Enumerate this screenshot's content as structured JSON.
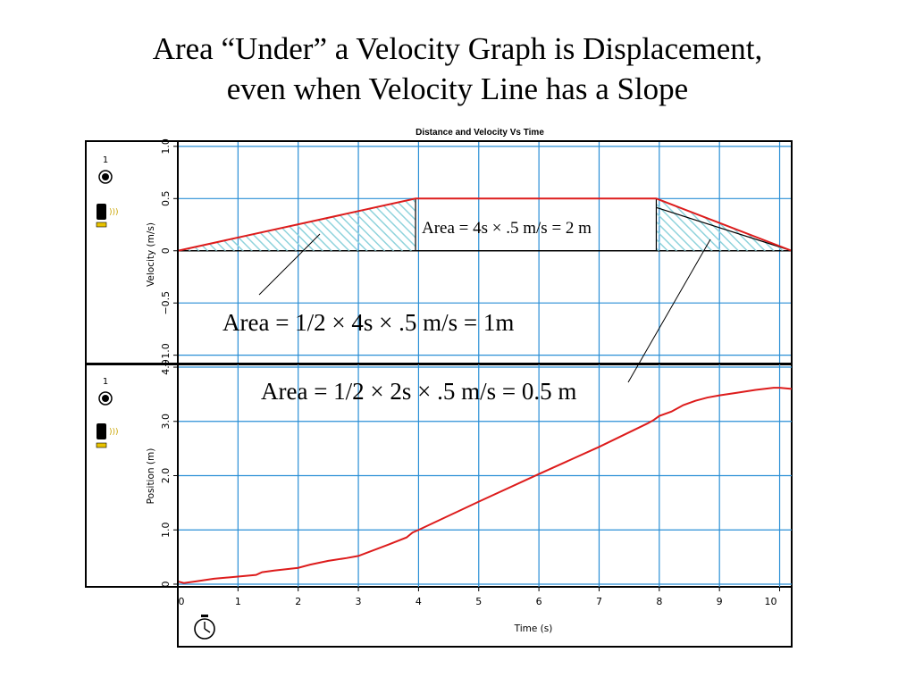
{
  "slide": {
    "title_line1": "Area “Under” a Velocity Graph is Displacement,",
    "title_line2": "even when Velocity Line has a Slope"
  },
  "chart_data": {
    "type": "line",
    "title": "Distance and Velocity Vs Time",
    "xlabel": "Time (s)",
    "xlim": [
      0,
      10.2
    ],
    "x_ticks": [
      0,
      1,
      2,
      3,
      4,
      5,
      6,
      7,
      8,
      9,
      10
    ],
    "colors": {
      "data": "#dd1c1c",
      "grid": "#2a8fd6",
      "hatch": "#8fd3dc"
    },
    "panels": [
      {
        "name": "velocity",
        "ylabel": "Velocity (m/s)",
        "ylim": [
          -1.08,
          1.05
        ],
        "y_ticks": [
          1.0,
          0.5,
          0,
          -0.5,
          -1.0
        ],
        "y_tick_labels": [
          "1.0",
          "0.5",
          "0",
          "−0.5",
          "−1.0"
        ],
        "series": [
          {
            "x": [
              0,
              3.95,
              7.95,
              10.2
            ],
            "y": [
              0,
              0.5,
              0.5,
              0
            ]
          }
        ]
      },
      {
        "name": "position",
        "ylabel": "Position (m)",
        "ylim": [
          -0.05,
          4.05
        ],
        "y_ticks": [
          4.0,
          3.0,
          2.0,
          1.0,
          0
        ],
        "y_tick_labels": [
          "4.0",
          "3.0",
          "2.0",
          "1.0",
          "0"
        ],
        "series": [
          {
            "x": [
              0,
              0.1,
              0.3,
              0.6,
              1.0,
              1.3,
              1.4,
              1.6,
              2.0,
              2.2,
              2.5,
              2.8,
              3.0,
              3.5,
              3.8,
              3.9,
              4.0,
              5.0,
              6.0,
              7.0,
              7.8,
              7.9,
              8.0,
              8.2,
              8.4,
              8.6,
              8.8,
              9.0,
              9.3,
              9.6,
              9.9,
              10.0,
              10.2
            ],
            "y": [
              0.05,
              0.02,
              0.05,
              0.1,
              0.14,
              0.17,
              0.22,
              0.25,
              0.3,
              0.36,
              0.43,
              0.48,
              0.52,
              0.73,
              0.86,
              0.95,
              1.0,
              1.52,
              2.03,
              2.53,
              2.96,
              3.02,
              3.1,
              3.18,
              3.3,
              3.38,
              3.44,
              3.48,
              3.53,
              3.58,
              3.62,
              3.62,
              3.6
            ]
          }
        ]
      }
    ],
    "annotations": [
      {
        "text": "Area = 4s × .5 m/s = 2 m"
      },
      {
        "text": "Area = 1/2 × 4s × .5 m/s = 1m"
      },
      {
        "text": "Area = 1/2 × 2s × .5 m/s = 0.5 m"
      }
    ]
  },
  "icons": {
    "sensor_number_top": "1",
    "sensor_number_bottom": "1"
  }
}
